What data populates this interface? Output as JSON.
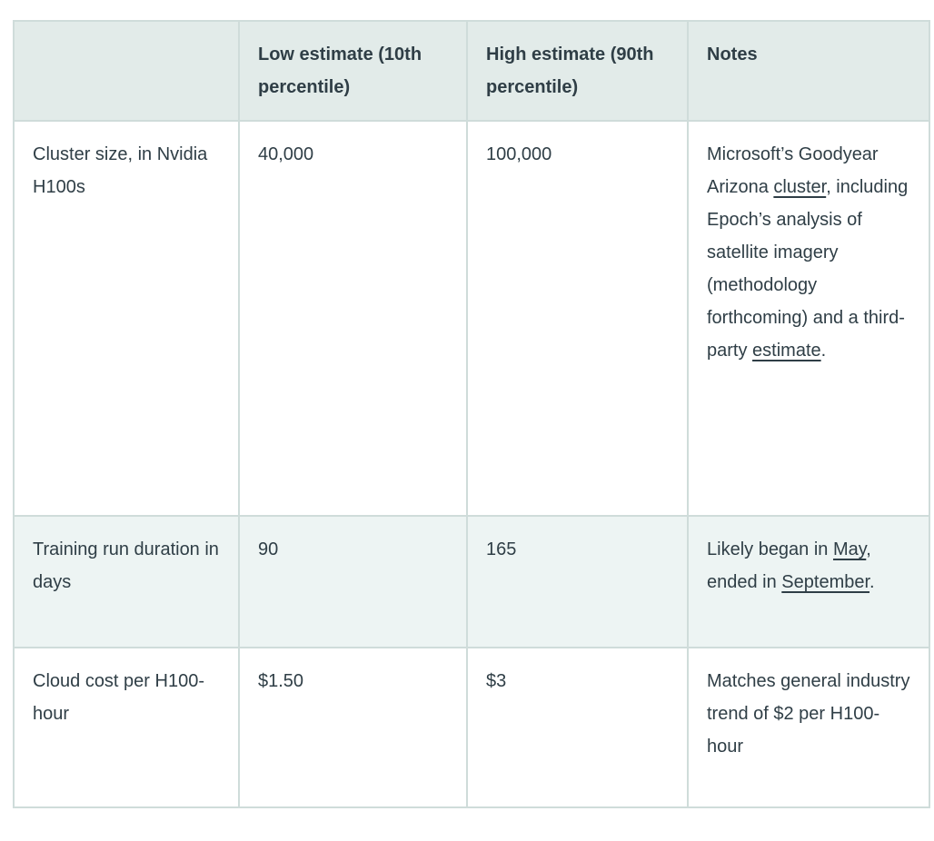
{
  "theme": {
    "border_color": "#cfdcda",
    "header_bg": "#e2ebe9",
    "row_alt_bg": "#edf4f3",
    "text_color": "#2f3e46"
  },
  "table": {
    "headers": [
      "",
      "Low estimate (10th percentile)",
      "High estimate (90th percentile)",
      "Notes"
    ],
    "rows": [
      {
        "label": "Cluster size, in Nvidia H100s",
        "low": "40,000",
        "high": "100,000",
        "notes": [
          {
            "text": "Microsoft’s Goodyear Arizona "
          },
          {
            "text": "cluster",
            "link": true,
            "name": "cluster"
          },
          {
            "text": ", including Epoch’s analysis of satellite imagery (methodology forthcoming) and a third-party "
          },
          {
            "text": "estimate",
            "link": true,
            "name": "estimate"
          },
          {
            "text": "."
          }
        ]
      },
      {
        "label": "Training run duration in days",
        "low": "90",
        "high": "165",
        "notes": [
          {
            "text": "Likely began in "
          },
          {
            "text": "May",
            "link": true,
            "name": "may"
          },
          {
            "text": ", ended in "
          },
          {
            "text": "September",
            "link": true,
            "name": "september"
          },
          {
            "text": "."
          }
        ]
      },
      {
        "label": "Cloud cost per H100-hour",
        "low": "$1.50",
        "high": "$3",
        "notes": [
          {
            "text": "Matches general industry trend of $2 per H100-hour"
          }
        ]
      }
    ]
  }
}
